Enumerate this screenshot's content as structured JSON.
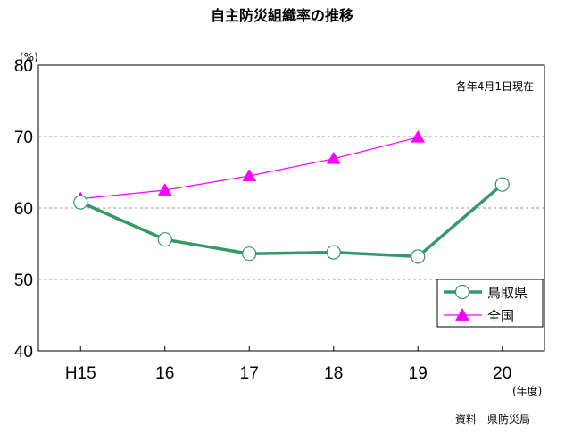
{
  "chart_data": {
    "type": "line",
    "title": "自主防災組織率の推移",
    "y_unit": "(%)",
    "x_unit": "(年度)",
    "note": "各年4月1日現在",
    "source": "資料　県防災局",
    "categories": [
      "H15",
      "16",
      "17",
      "18",
      "19",
      "20"
    ],
    "ylim": [
      40,
      80
    ],
    "yticks": [
      40,
      50,
      60,
      70,
      80
    ],
    "grid": true,
    "legend_position": "bottom-right",
    "series": [
      {
        "name": "鳥取県",
        "color": "#339966",
        "marker": "circle",
        "values": [
          60.8,
          55.6,
          53.6,
          53.8,
          53.2,
          63.3
        ]
      },
      {
        "name": "全国",
        "color": "#ff00ff",
        "marker": "triangle",
        "values": [
          61.3,
          62.5,
          64.5,
          66.9,
          69.9,
          null
        ]
      }
    ]
  }
}
